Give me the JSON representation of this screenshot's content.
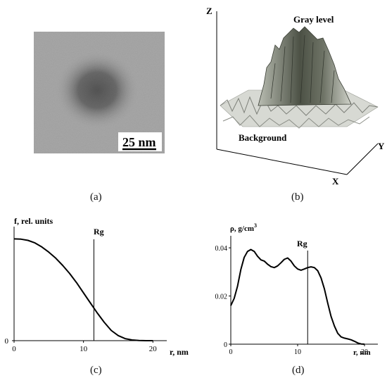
{
  "panel_a": {
    "caption": "(a)",
    "scale_label": "25 nm"
  },
  "panel_b": {
    "caption": "(b)",
    "axis_z": "Z",
    "axis_y": "Y",
    "axis_x": "X",
    "label_top": "Gray level",
    "label_bottom": "Background"
  },
  "panel_c": {
    "caption": "(c)",
    "ylabel": "f, rel. units",
    "xlabel": "r, nm",
    "marker_label": "Rg"
  },
  "panel_d": {
    "caption": "(d)",
    "ylabel": "ρ, g/cm",
    "ylabel_sup": "3",
    "xlabel": "r, nm",
    "marker_label": "Rg"
  },
  "colors": {
    "micrograph_bg": "#a9a9a9",
    "micrograph_spot": "#595959",
    "surface_dark": "#4c5145",
    "surface_light": "#c9ccc3"
  },
  "chart_data": [
    {
      "id": "c",
      "type": "line",
      "xlabel": "r, nm",
      "ylabel": "f, rel. units",
      "xlim": [
        0,
        22
      ],
      "ylim": [
        0,
        1.12
      ],
      "xticks": [
        0,
        10,
        20
      ],
      "yticks": [
        0
      ],
      "marker_x": 11.5,
      "x": [
        0,
        1,
        2,
        3,
        4,
        5,
        6,
        7,
        8,
        9,
        10,
        11,
        12,
        13,
        14,
        15,
        16,
        17,
        18,
        19,
        20
      ],
      "values": [
        1.0,
        0.997,
        0.985,
        0.96,
        0.92,
        0.87,
        0.81,
        0.74,
        0.66,
        0.57,
        0.47,
        0.37,
        0.27,
        0.18,
        0.1,
        0.05,
        0.02,
        0.007,
        0.002,
        0.0,
        0.0
      ]
    },
    {
      "id": "d",
      "type": "line",
      "xlabel": "r, nm",
      "ylabel": "ρ, g/cm3",
      "xlim": [
        0,
        22
      ],
      "ylim": [
        0,
        0.045
      ],
      "xticks": [
        0,
        10,
        20
      ],
      "yticks": [
        0,
        0.02,
        0.04
      ],
      "ytick_labels": [
        "0",
        "0.02",
        "0.04"
      ],
      "marker_x": 11.5,
      "x": [
        0,
        0.5,
        1,
        1.5,
        2,
        2.5,
        3,
        3.5,
        4,
        4.5,
        5,
        5.5,
        6,
        6.5,
        7,
        7.5,
        8,
        8.5,
        9,
        9.5,
        10,
        10.5,
        11,
        11.5,
        12,
        12.5,
        13,
        13.5,
        14,
        14.5,
        15,
        15.5,
        16,
        16.5,
        17,
        17.5,
        18,
        18.5,
        19,
        19.5,
        20
      ],
      "values": [
        0.016,
        0.019,
        0.024,
        0.031,
        0.036,
        0.0385,
        0.0393,
        0.0385,
        0.0365,
        0.035,
        0.0345,
        0.0332,
        0.0322,
        0.0318,
        0.0325,
        0.0338,
        0.0352,
        0.0358,
        0.0345,
        0.0325,
        0.0312,
        0.0307,
        0.0312,
        0.0318,
        0.0321,
        0.0318,
        0.0305,
        0.0275,
        0.023,
        0.017,
        0.0115,
        0.0075,
        0.0045,
        0.003,
        0.0025,
        0.0022,
        0.0018,
        0.0012,
        0.0005,
        0.0001,
        0.0
      ]
    }
  ]
}
